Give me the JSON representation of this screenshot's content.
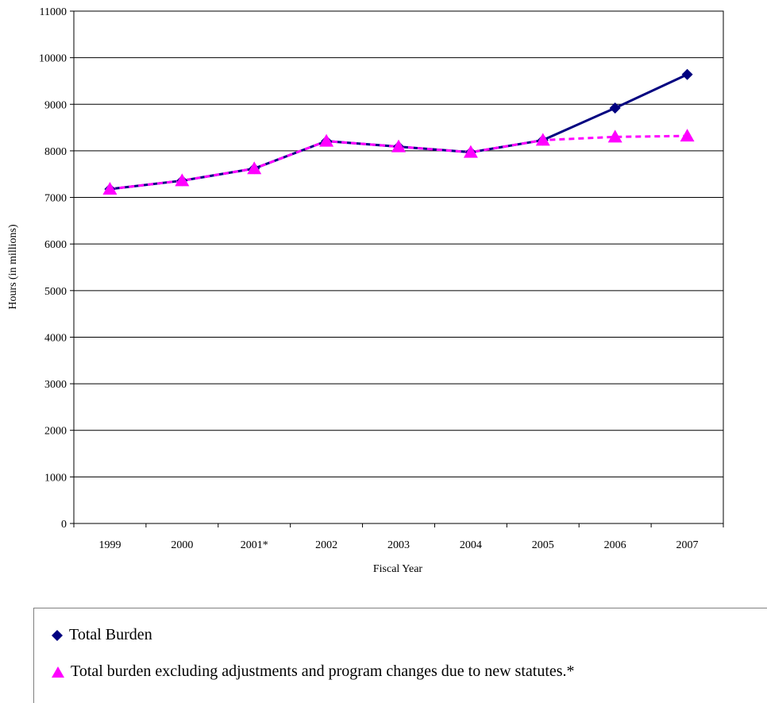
{
  "chart_data": {
    "type": "line",
    "categories": [
      "1999",
      "2000",
      "2001*",
      "2002",
      "2003",
      "2004",
      "2005",
      "2006",
      "2007"
    ],
    "series": [
      {
        "name": "Total Burden",
        "values": [
          7180,
          7360,
          7620,
          8210,
          8090,
          7970,
          8230,
          8920,
          9640
        ],
        "color": "#000080",
        "marker": "diamond",
        "line": "solid"
      },
      {
        "name": "Total burden excluding adjustments and program changes due to new statutes.*",
        "values": [
          7180,
          7360,
          7620,
          8210,
          8090,
          7970,
          8230,
          8300,
          8320
        ],
        "color": "#ff00ff",
        "marker": "triangle",
        "line": "dashed"
      }
    ],
    "xlabel": "Fiscal Year",
    "ylabel": "Hours (in millions)",
    "ylim": [
      0,
      11000
    ],
    "yticks": [
      0,
      1000,
      2000,
      3000,
      4000,
      5000,
      6000,
      7000,
      8000,
      9000,
      10000,
      11000
    ],
    "grid": true,
    "legend_position": "bottom"
  },
  "legend": {
    "item1": "Total Burden",
    "item2": "Total burden excluding adjustments and program changes due to new statutes.*"
  }
}
